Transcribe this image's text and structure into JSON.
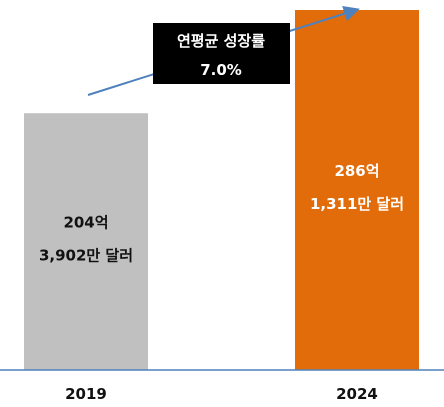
{
  "chart_data": {
    "type": "bar",
    "categories": [
      "2019",
      "2024"
    ],
    "values": [
      204,
      286
    ],
    "value_unit": "억",
    "ylim": [
      0,
      286
    ],
    "bars": [
      {
        "category": "2019",
        "label_line1": "204억",
        "label_line2": "3,902만 달러",
        "color": "#c0c0c0",
        "text_color": "#111111"
      },
      {
        "category": "2024",
        "label_line1": "286억",
        "label_line2": "1,311만 달러",
        "color": "#e36c0a",
        "text_color": "#ffffff"
      }
    ],
    "annotation": {
      "title": "연평균 성장률",
      "value": "7.0%",
      "box_color": "#000000",
      "text_color": "#ffffff",
      "arrow_color": "#4f81bd"
    },
    "axis_color": "#4f81bd",
    "grid": false,
    "legend": "none"
  }
}
